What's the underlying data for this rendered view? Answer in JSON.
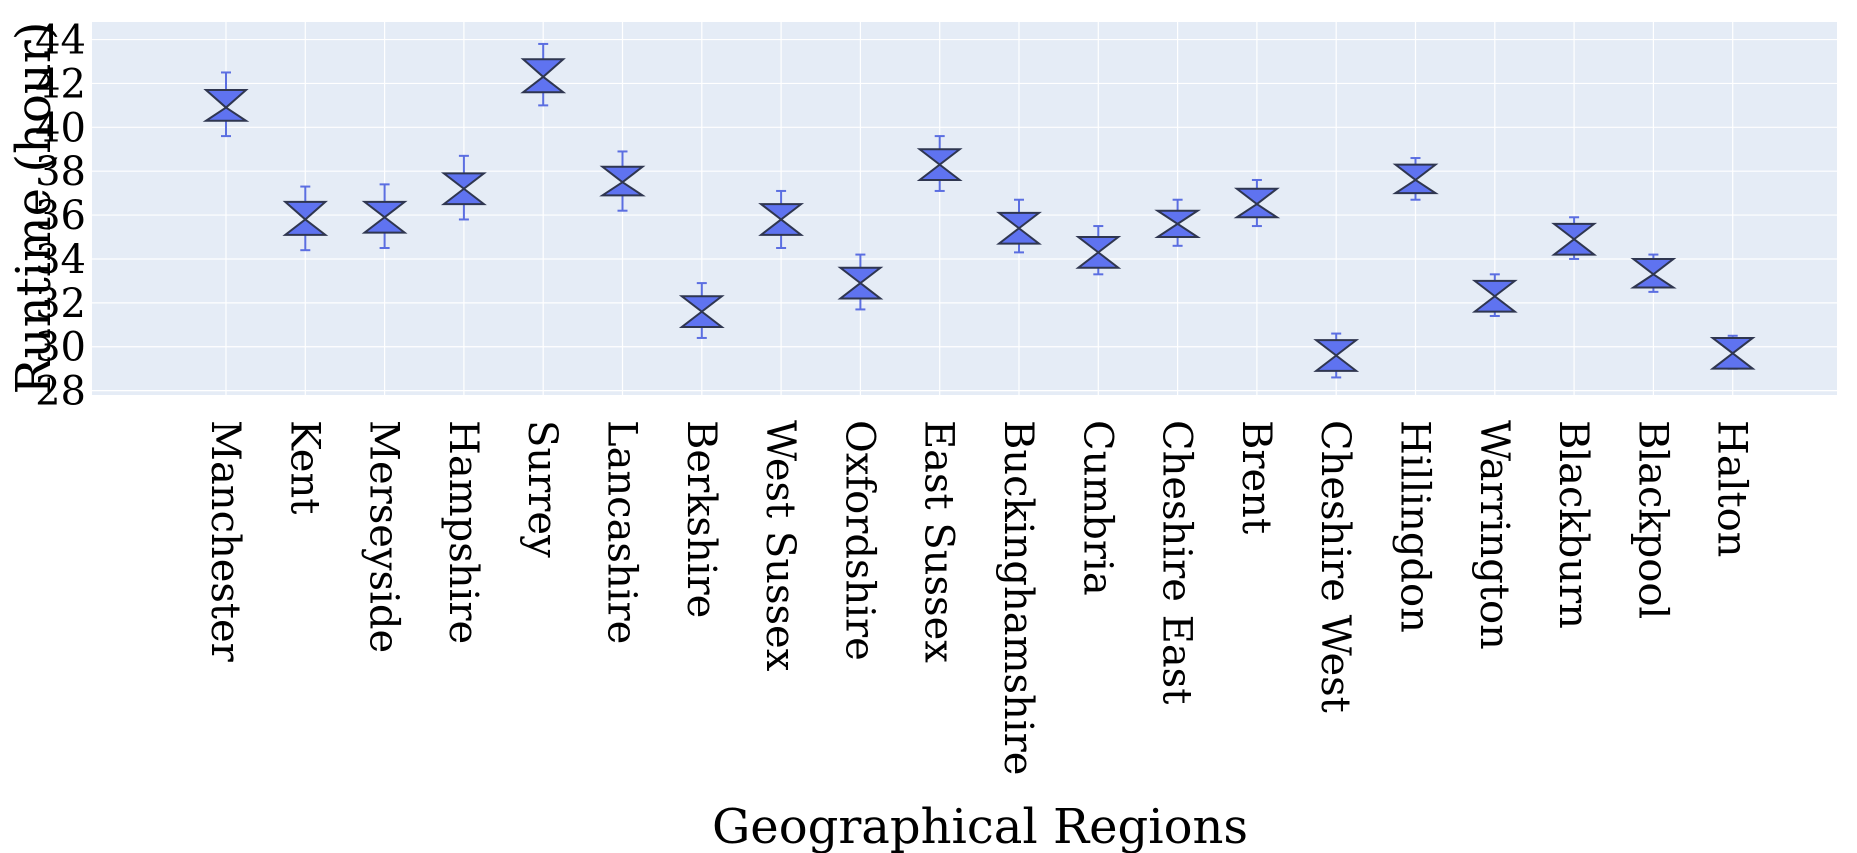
{
  "chart_data": {
    "type": "box",
    "xlabel": "Geographical Regions",
    "ylabel": "Runtime (hour)",
    "ylim": [
      27.8,
      44.8
    ],
    "yticks": [
      28,
      30,
      32,
      34,
      36,
      38,
      40,
      42,
      44
    ],
    "grid": true,
    "categories": [
      "Manchester",
      "Kent",
      "Merseyside",
      "Hampshire",
      "Surrey",
      "Lancashire",
      "Berkshire",
      "West Sussex",
      "Oxfordshire",
      "East Sussex",
      "Buckinghamshire",
      "Cumbria",
      "Cheshire East",
      "Brent",
      "Cheshire West",
      "Hillingdon",
      "Warrington",
      "Blackburn",
      "Blackpool",
      "Halton"
    ],
    "boxes": [
      {
        "whisker_low": 39.6,
        "q1": 40.3,
        "median": 40.9,
        "q3": 41.7,
        "whisker_high": 42.5
      },
      {
        "whisker_low": 34.4,
        "q1": 35.1,
        "median": 35.8,
        "q3": 36.6,
        "whisker_high": 37.3
      },
      {
        "whisker_low": 34.5,
        "q1": 35.2,
        "median": 35.9,
        "q3": 36.6,
        "whisker_high": 37.4
      },
      {
        "whisker_low": 35.8,
        "q1": 36.5,
        "median": 37.2,
        "q3": 37.9,
        "whisker_high": 38.7
      },
      {
        "whisker_low": 41.0,
        "q1": 41.6,
        "median": 42.3,
        "q3": 43.1,
        "whisker_high": 43.8
      },
      {
        "whisker_low": 36.2,
        "q1": 36.9,
        "median": 37.5,
        "q3": 38.2,
        "whisker_high": 38.9
      },
      {
        "whisker_low": 30.4,
        "q1": 30.9,
        "median": 31.6,
        "q3": 32.3,
        "whisker_high": 32.9
      },
      {
        "whisker_low": 34.5,
        "q1": 35.1,
        "median": 35.8,
        "q3": 36.5,
        "whisker_high": 37.1
      },
      {
        "whisker_low": 31.7,
        "q1": 32.2,
        "median": 32.9,
        "q3": 33.6,
        "whisker_high": 34.2
      },
      {
        "whisker_low": 37.1,
        "q1": 37.6,
        "median": 38.3,
        "q3": 39.0,
        "whisker_high": 39.6
      },
      {
        "whisker_low": 34.3,
        "q1": 34.7,
        "median": 35.4,
        "q3": 36.1,
        "whisker_high": 36.7
      },
      {
        "whisker_low": 33.3,
        "q1": 33.6,
        "median": 34.3,
        "q3": 35.0,
        "whisker_high": 35.5
      },
      {
        "whisker_low": 34.6,
        "q1": 35.0,
        "median": 35.6,
        "q3": 36.2,
        "whisker_high": 36.7
      },
      {
        "whisker_low": 35.5,
        "q1": 35.9,
        "median": 36.5,
        "q3": 37.2,
        "whisker_high": 37.6
      },
      {
        "whisker_low": 28.6,
        "q1": 28.9,
        "median": 29.6,
        "q3": 30.3,
        "whisker_high": 30.6
      },
      {
        "whisker_low": 36.7,
        "q1": 37.0,
        "median": 37.6,
        "q3": 38.3,
        "whisker_high": 38.6
      },
      {
        "whisker_low": 31.4,
        "q1": 31.6,
        "median": 32.3,
        "q3": 33.0,
        "whisker_high": 33.3
      },
      {
        "whisker_low": 34.0,
        "q1": 34.2,
        "median": 34.9,
        "q3": 35.6,
        "whisker_high": 35.9
      },
      {
        "whisker_low": 32.5,
        "q1": 32.7,
        "median": 33.3,
        "q3": 34.0,
        "whisker_high": 34.2
      },
      {
        "whisker_low": 29.0,
        "q1": 29.0,
        "median": 29.7,
        "q3": 30.4,
        "whisker_high": 30.5
      }
    ],
    "colors": {
      "box_fill": "#5f73f0",
      "box_edge": "#2f3650",
      "whisker": "#5b6ee1",
      "plot_bg": "#e5ecf6",
      "grid": "#ffffff"
    }
  }
}
